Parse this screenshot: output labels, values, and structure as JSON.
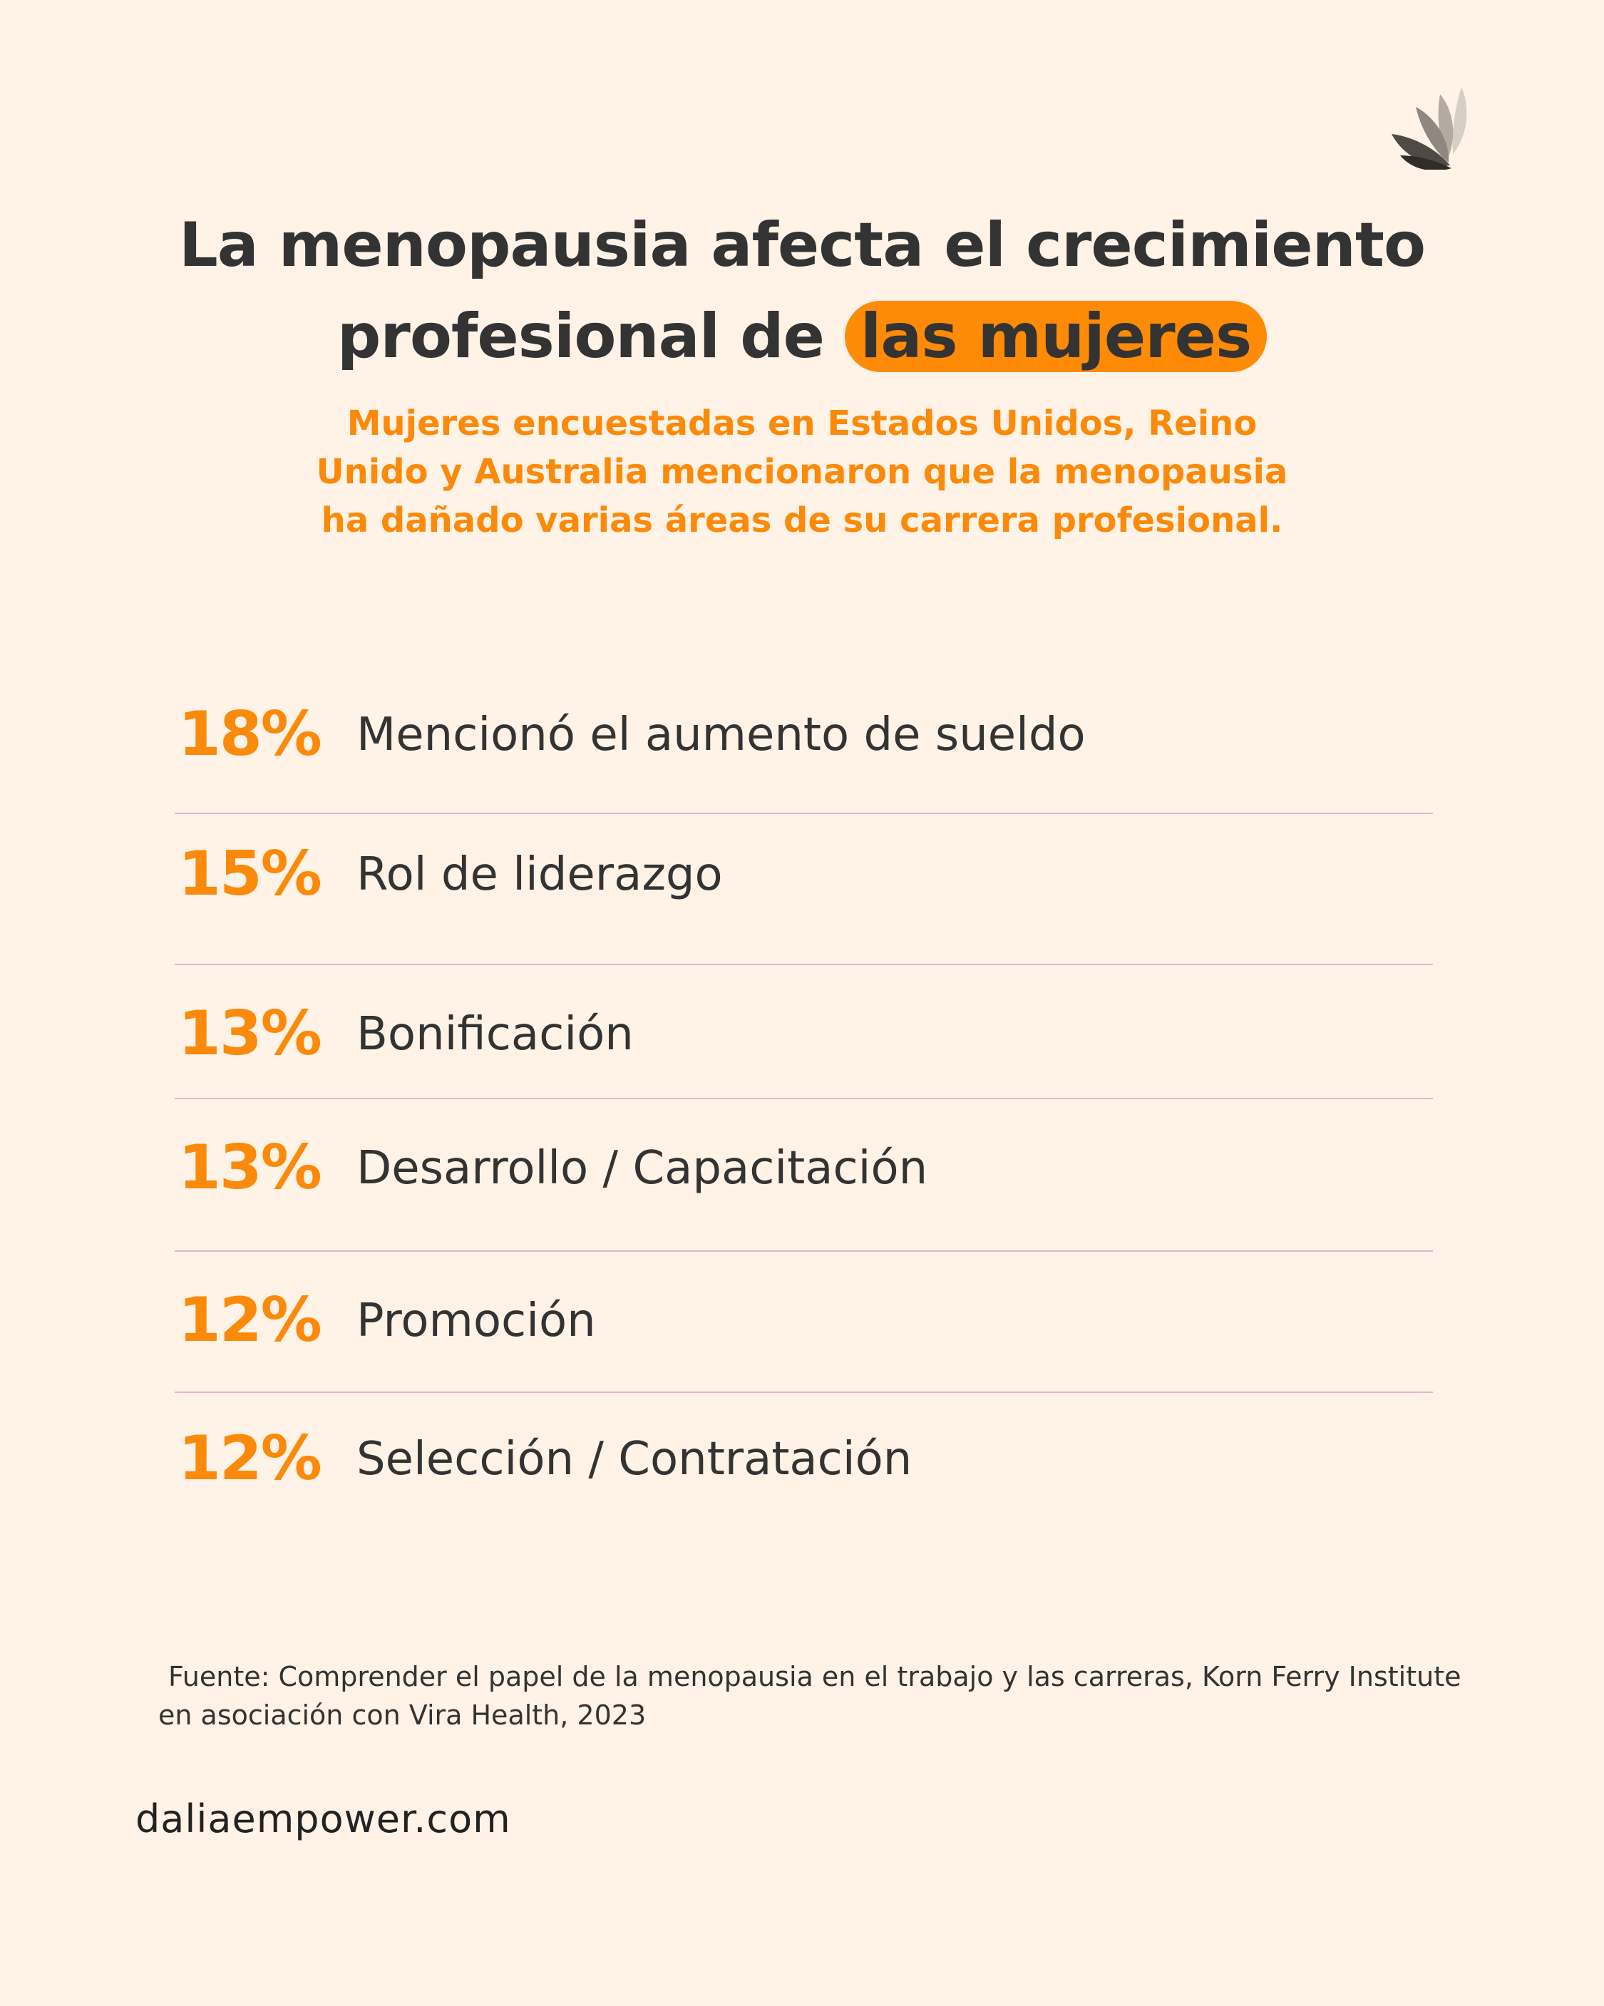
{
  "title": {
    "line1": "La menopausia afecta el crecimiento",
    "line2_prefix": "profesional de ",
    "line2_highlight": "las mujeres"
  },
  "subtitle": {
    "line1": "Mujeres encuestadas en Estados Unidos, Reino",
    "line2": "Unido y Australia mencionaron que la menopausia",
    "line3": "ha dañado varias áreas de su carrera profesional."
  },
  "chart_data": {
    "type": "table",
    "categories": [
      "Mencionó el aumento de sueldo",
      "Rol de liderazgo",
      "Bonificación",
      "Desarrollo / Capacitación",
      "Promoción",
      "Selección / Contratación"
    ],
    "values": [
      18,
      15,
      13,
      13,
      12,
      12
    ],
    "rows": [
      {
        "value": "18%",
        "label": "Mencionó el aumento de sueldo"
      },
      {
        "value": "15%",
        "label": "Rol de liderazgo"
      },
      {
        "value": "13%",
        "label": "Bonificación"
      },
      {
        "value": "13%",
        "label": "Desarrollo / Capacitación"
      },
      {
        "value": "12%",
        "label": "Promoción"
      },
      {
        "value": "12%",
        "label": "Selección / Contratación"
      }
    ]
  },
  "source": {
    "line1": "Fuente: Comprender el papel de la menopausia en el trabajo y las carreras, Korn Ferry Institute",
    "line2": "en asociación con Vira Health, 2023"
  },
  "website": "daliaempower.com",
  "colors": {
    "background": "#fef3e6",
    "accent": "#fb8a0b",
    "text": "#333333",
    "divider": "#e7b3cf"
  },
  "icons": {
    "logo": "leaf-logo-icon"
  }
}
